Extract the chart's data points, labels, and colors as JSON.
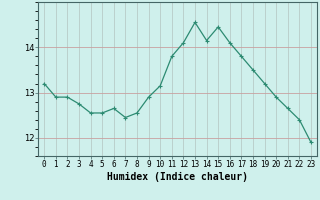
{
  "x": [
    0,
    1,
    2,
    3,
    4,
    5,
    6,
    7,
    8,
    9,
    10,
    11,
    12,
    13,
    14,
    15,
    16,
    17,
    18,
    19,
    20,
    21,
    22,
    23
  ],
  "y": [
    13.2,
    12.9,
    12.9,
    12.75,
    12.55,
    12.55,
    12.65,
    12.45,
    12.55,
    12.9,
    13.15,
    13.8,
    14.1,
    14.55,
    14.15,
    14.45,
    14.1,
    13.8,
    13.5,
    13.2,
    12.9,
    12.65,
    12.4,
    11.9
  ],
  "line_color": "#2d8b72",
  "marker": "+",
  "marker_size": 3.5,
  "bg_color": "#cff0ec",
  "grid_color_h": "#c8a0a0",
  "grid_color_v": "#b8ccc8",
  "xlabel": "Humidex (Indice chaleur)",
  "ylim": [
    11.6,
    15.0
  ],
  "yticks": [
    12,
    13,
    14
  ],
  "xlim": [
    -0.5,
    23.5
  ],
  "xlabel_fontsize": 7,
  "tick_fontsize": 5.5
}
